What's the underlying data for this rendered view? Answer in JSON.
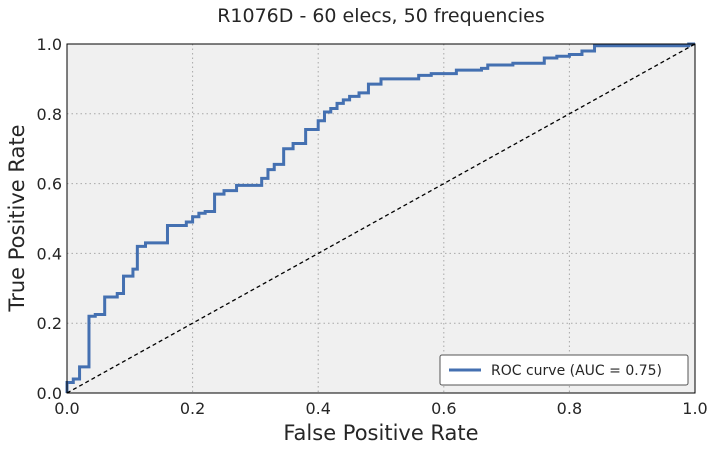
{
  "chart_data": {
    "type": "line",
    "title": "R1076D - 60 elecs, 50 frequencies",
    "xlabel": "False Positive Rate",
    "ylabel": "True Positive Rate",
    "xlim": [
      0.0,
      1.0
    ],
    "ylim": [
      0.0,
      1.0
    ],
    "grid": true,
    "legend_position": "bottom-right",
    "x_ticks": [
      "0.0",
      "0.2",
      "0.4",
      "0.6",
      "0.8",
      "1.0"
    ],
    "y_ticks": [
      "0.0",
      "0.2",
      "0.4",
      "0.6",
      "0.8",
      "1.0"
    ],
    "series": [
      {
        "name": "ROC curve (AUC = 0.75)",
        "color": "#4470b1",
        "style": "solid-step",
        "x": [
          0.0,
          0.0,
          0.01,
          0.01,
          0.02,
          0.02,
          0.035,
          0.035,
          0.045,
          0.045,
          0.06,
          0.06,
          0.08,
          0.08,
          0.09,
          0.09,
          0.105,
          0.105,
          0.112,
          0.112,
          0.125,
          0.125,
          0.16,
          0.16,
          0.19,
          0.19,
          0.2,
          0.2,
          0.21,
          0.21,
          0.22,
          0.22,
          0.235,
          0.235,
          0.25,
          0.25,
          0.27,
          0.27,
          0.31,
          0.31,
          0.32,
          0.32,
          0.33,
          0.33,
          0.345,
          0.345,
          0.36,
          0.36,
          0.38,
          0.38,
          0.4,
          0.4,
          0.41,
          0.41,
          0.42,
          0.42,
          0.43,
          0.43,
          0.44,
          0.44,
          0.45,
          0.45,
          0.465,
          0.465,
          0.48,
          0.48,
          0.5,
          0.5,
          0.56,
          0.56,
          0.58,
          0.58,
          0.62,
          0.62,
          0.66,
          0.66,
          0.67,
          0.67,
          0.71,
          0.71,
          0.76,
          0.76,
          0.78,
          0.78,
          0.8,
          0.8,
          0.82,
          0.82,
          0.84,
          0.84,
          0.99,
          0.99,
          1.0
        ],
        "y": [
          0.0,
          0.03,
          0.03,
          0.04,
          0.04,
          0.075,
          0.075,
          0.22,
          0.22,
          0.225,
          0.225,
          0.275,
          0.275,
          0.285,
          0.285,
          0.335,
          0.335,
          0.355,
          0.355,
          0.42,
          0.42,
          0.43,
          0.43,
          0.48,
          0.48,
          0.49,
          0.49,
          0.505,
          0.505,
          0.515,
          0.515,
          0.52,
          0.52,
          0.57,
          0.57,
          0.58,
          0.58,
          0.595,
          0.595,
          0.615,
          0.615,
          0.64,
          0.64,
          0.655,
          0.655,
          0.7,
          0.7,
          0.715,
          0.715,
          0.755,
          0.755,
          0.78,
          0.78,
          0.805,
          0.805,
          0.815,
          0.815,
          0.83,
          0.83,
          0.84,
          0.84,
          0.85,
          0.85,
          0.86,
          0.86,
          0.885,
          0.885,
          0.9,
          0.9,
          0.91,
          0.91,
          0.915,
          0.915,
          0.925,
          0.925,
          0.93,
          0.93,
          0.94,
          0.94,
          0.945,
          0.945,
          0.96,
          0.96,
          0.965,
          0.965,
          0.97,
          0.97,
          0.98,
          0.98,
          0.995,
          0.995,
          1.0,
          1.0
        ]
      },
      {
        "color": "#000000",
        "style": "dashed",
        "x": [
          0.0,
          1.0
        ],
        "y": [
          0.0,
          1.0
        ]
      }
    ]
  }
}
